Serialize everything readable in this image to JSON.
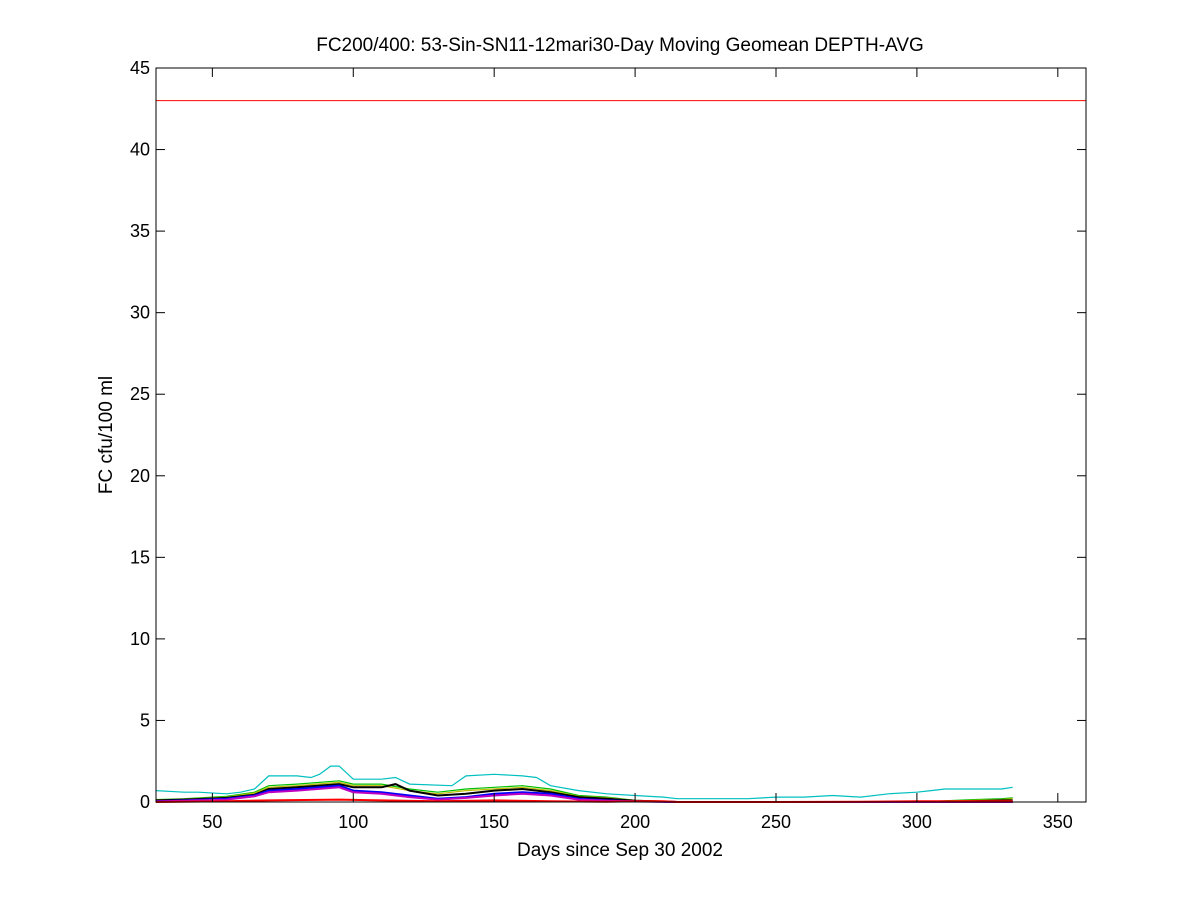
{
  "chart_data": {
    "type": "line",
    "title": "FC200/400: 53-Sin-SN11-12mari30-Day Moving Geomean DEPTH-AVG",
    "xlabel": "Days since Sep 30 2002",
    "ylabel": "FC cfu/100 ml",
    "xlim": [
      30,
      360
    ],
    "ylim": [
      0,
      45
    ],
    "xticks": [
      50,
      100,
      150,
      200,
      250,
      300,
      350
    ],
    "yticks": [
      0,
      5,
      10,
      15,
      20,
      25,
      30,
      35,
      40,
      45
    ],
    "grid": false,
    "legend": "none",
    "threshold": {
      "y": 43,
      "color": "#ff0000"
    },
    "series": [
      {
        "color": "#00bfbf",
        "x": [
          30,
          40,
          45,
          55,
          60,
          65,
          70,
          80,
          85,
          88,
          92,
          95,
          100,
          110,
          115,
          120,
          135,
          140,
          150,
          160,
          165,
          170,
          180,
          190,
          200,
          210,
          215,
          230,
          240,
          250,
          260,
          270,
          280,
          290,
          300,
          305,
          310,
          320,
          330,
          334
        ],
        "y": [
          0.7,
          0.6,
          0.6,
          0.5,
          0.6,
          0.8,
          1.6,
          1.6,
          1.5,
          1.7,
          2.2,
          2.2,
          1.4,
          1.4,
          1.5,
          1.1,
          1.0,
          1.6,
          1.7,
          1.6,
          1.5,
          1.0,
          0.7,
          0.5,
          0.4,
          0.3,
          0.2,
          0.2,
          0.2,
          0.3,
          0.3,
          0.4,
          0.3,
          0.5,
          0.6,
          0.7,
          0.8,
          0.8,
          0.8,
          0.9
        ]
      },
      {
        "color": "#00bf00",
        "x": [
          30,
          40,
          55,
          65,
          70,
          80,
          95,
          100,
          110,
          120,
          130,
          140,
          150,
          160,
          170,
          180,
          190,
          200,
          210,
          215,
          250,
          300,
          320,
          330,
          334
        ],
        "y": [
          0.15,
          0.2,
          0.35,
          0.6,
          1.0,
          1.1,
          1.3,
          1.1,
          1.1,
          0.8,
          0.6,
          0.8,
          0.9,
          1.0,
          0.8,
          0.4,
          0.3,
          0.1,
          0.05,
          0.0,
          0.0,
          0.0,
          0.15,
          0.2,
          0.25
        ]
      },
      {
        "color": "#bfbf00",
        "x": [
          30,
          40,
          55,
          65,
          70,
          80,
          95,
          100,
          110,
          120,
          130,
          140,
          150,
          160,
          170,
          180,
          190,
          200,
          210,
          215,
          250,
          300,
          320,
          330,
          334
        ],
        "y": [
          0.12,
          0.18,
          0.3,
          0.55,
          0.9,
          1.0,
          1.2,
          1.0,
          1.0,
          0.7,
          0.5,
          0.7,
          0.8,
          0.9,
          0.7,
          0.35,
          0.25,
          0.1,
          0.05,
          0.0,
          0.0,
          0.0,
          0.1,
          0.15,
          0.2
        ]
      },
      {
        "color": "#000000",
        "x": [
          30,
          40,
          55,
          65,
          70,
          80,
          95,
          100,
          110,
          115,
          120,
          130,
          140,
          150,
          160,
          170,
          180,
          190,
          200,
          210,
          215,
          250,
          300,
          320,
          330,
          334
        ],
        "y": [
          0.1,
          0.15,
          0.25,
          0.45,
          0.8,
          0.9,
          1.1,
          0.9,
          0.9,
          1.1,
          0.7,
          0.4,
          0.5,
          0.7,
          0.8,
          0.6,
          0.3,
          0.2,
          0.08,
          0.03,
          0.0,
          0.0,
          0.0,
          0.05,
          0.1,
          0.1
        ]
      },
      {
        "color": "#0000ff",
        "x": [
          30,
          40,
          55,
          65,
          70,
          80,
          95,
          100,
          110,
          120,
          130,
          140,
          150,
          160,
          170,
          180,
          190,
          200,
          210,
          215,
          250,
          300,
          334
        ],
        "y": [
          0.05,
          0.1,
          0.2,
          0.4,
          0.7,
          0.8,
          1.0,
          0.7,
          0.6,
          0.4,
          0.2,
          0.3,
          0.5,
          0.6,
          0.5,
          0.2,
          0.1,
          0.05,
          0.02,
          0.0,
          0.0,
          0.0,
          0.0
        ]
      },
      {
        "color": "#bf00bf",
        "x": [
          30,
          40,
          55,
          65,
          70,
          80,
          95,
          100,
          110,
          120,
          130,
          140,
          150,
          160,
          170,
          180,
          190,
          200,
          210,
          215,
          250,
          300,
          334
        ],
        "y": [
          0.03,
          0.08,
          0.15,
          0.35,
          0.6,
          0.7,
          0.9,
          0.6,
          0.5,
          0.3,
          0.15,
          0.25,
          0.4,
          0.5,
          0.4,
          0.15,
          0.08,
          0.03,
          0.01,
          0.0,
          0.0,
          0.0,
          0.0
        ]
      },
      {
        "color": "#ff0000",
        "x": [
          30,
          55,
          70,
          95,
          110,
          130,
          150,
          170,
          190,
          200,
          210,
          215,
          250,
          280,
          300,
          320,
          334
        ],
        "y": [
          0.0,
          0.05,
          0.1,
          0.15,
          0.1,
          0.05,
          0.1,
          0.05,
          0.02,
          0.05,
          0.05,
          0.0,
          0.0,
          0.02,
          0.05,
          0.05,
          0.05
        ]
      }
    ]
  }
}
